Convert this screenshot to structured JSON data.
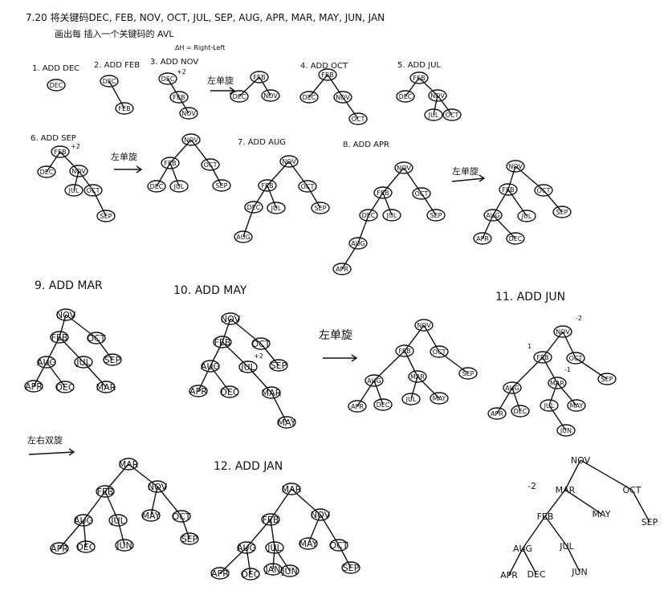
{
  "title": "7.20 将关键码DEC, FEB, NOV, OCT, JUL, SEP, AUG, APR, MAR, MAY, JUN, JAN",
  "subtitle": "画出每 插入一个关键码的 AVL",
  "bf_note": "ΔH = Right-Left",
  "rotation_single": "左单旋",
  "rotation_double": "左右双旋",
  "steps": [
    {
      "label": "1. ADD DEC"
    },
    {
      "label": "2. ADD FEB"
    },
    {
      "label": "3. ADD NOV"
    },
    {
      "label": "4. ADD OCT"
    },
    {
      "label": "5. ADD JUL"
    },
    {
      "label": "6. ADD SEP"
    },
    {
      "label": "7. ADD AUG"
    },
    {
      "label": "8. ADD APR"
    },
    {
      "label": "9. ADD MAR"
    },
    {
      "label": "10. ADD MAY"
    },
    {
      "label": "11. ADD JUN"
    },
    {
      "label": "12. ADD JAN"
    }
  ],
  "balance_marks": [
    "+2",
    "+2",
    "+2",
    "-2",
    "-2",
    "1",
    "-1"
  ],
  "keys": [
    "DEC",
    "FEB",
    "NOV",
    "OCT",
    "JUL",
    "SEP",
    "AUG",
    "APR",
    "MAR",
    "MAY",
    "JUN",
    "JAN"
  ]
}
